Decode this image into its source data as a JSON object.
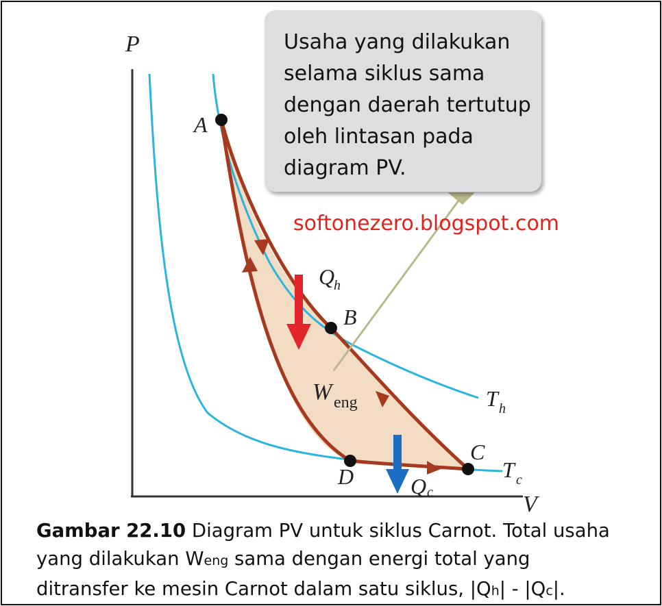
{
  "colors": {
    "isotherm": "#2bb5dd",
    "cycle": "#a63a1f",
    "enclosed_area": "#f2dcc3",
    "heat_in_arrow": "#e2262b",
    "heat_out_arrow": "#1c6fc4",
    "callout_pointer": "#b9b98a",
    "watermark": "#e0241d",
    "callout_background": "#dcdedf"
  },
  "axes": {
    "y_label": "P",
    "x_label": "V"
  },
  "points": {
    "a": "A",
    "b": "B",
    "c": "C",
    "d": "D"
  },
  "isotherms": {
    "hot": "T",
    "hot_sub": "h",
    "cold": "T",
    "cold_sub": "c"
  },
  "heat": {
    "in": "Q",
    "in_sub": "h",
    "out": "Q",
    "out_sub": "c"
  },
  "work": {
    "symbol": "W",
    "sub": "eng"
  },
  "callout": {
    "lines": [
      "Usaha yang dilakukan",
      "selama siklus sama",
      "dengan daerah tertutup",
      "oleh lintasan pada",
      "diagram PV."
    ]
  },
  "watermark": "softonezero.blogspot.com",
  "caption": {
    "figure_label": "Gambar 22.10",
    "line1_rest": " Diagram PV untuk siklus Carnot. Total usaha",
    "line2_pre": "yang dilakukan W",
    "line2_sub": "eng",
    "line2_post": " sama dengan energi total yang",
    "line3_pre": "ditransfer ke mesin Carnot dalam satu siklus, |Q",
    "line3_sub1": "h",
    "line3_mid": "| - |Q",
    "line3_sub2": "c",
    "line3_post": "|."
  }
}
